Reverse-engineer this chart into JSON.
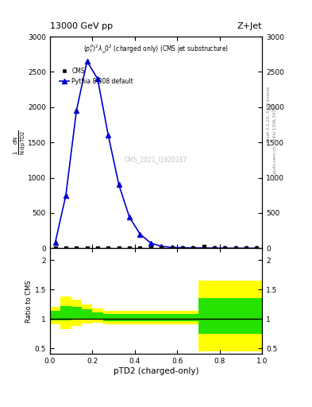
{
  "title_top_left": "13000 GeV pp",
  "title_top_right": "Z+Jet",
  "plot_subtitle": "(p_{T}^{p})^{2}#lambda_{0}^{2} (charged only) (CMS jet substructure)",
  "xlabel": "pTD2 (charged-only)",
  "ylabel_ratio": "Ratio to CMS",
  "watermark": "CMS_2021_I1920187",
  "right_label1": "Rivet 3.1.10, 3.2M events",
  "right_label2": "mcplots.cern.ch [arXiv:1306.3436]",
  "cms_x": [
    0.025,
    0.075,
    0.125,
    0.175,
    0.225,
    0.275,
    0.325,
    0.375,
    0.425,
    0.475,
    0.525,
    0.575,
    0.625,
    0.675,
    0.725,
    0.775,
    0.825,
    0.875,
    0.925,
    0.975
  ],
  "cms_y": [
    5,
    5,
    5,
    5,
    5,
    5,
    5,
    5,
    5,
    5,
    5,
    5,
    5,
    5,
    25,
    5,
    5,
    5,
    5,
    5
  ],
  "pythia_x": [
    0.025,
    0.075,
    0.125,
    0.175,
    0.225,
    0.275,
    0.325,
    0.375,
    0.425,
    0.475,
    0.525,
    0.575,
    0.625,
    0.675,
    0.725,
    0.775,
    0.825,
    0.875,
    0.925,
    0.975
  ],
  "pythia_y": [
    80,
    750,
    1950,
    2650,
    2400,
    1600,
    900,
    440,
    200,
    75,
    28,
    12,
    8,
    6,
    4,
    2.5,
    1.5,
    1,
    0.7,
    0.3
  ],
  "ylim_main": [
    0,
    3000
  ],
  "yticks_main": [
    0,
    500,
    1000,
    1500,
    2000,
    2500,
    3000
  ],
  "xlim": [
    0.0,
    1.0
  ],
  "ratio_ylim": [
    0.4,
    2.2
  ],
  "ratio_yticks": [
    0.5,
    1.0,
    1.5,
    2.0
  ],
  "bin_edges": [
    0.0,
    0.05,
    0.1,
    0.15,
    0.2,
    0.25,
    0.3,
    0.35,
    0.4,
    0.45,
    0.5,
    0.55,
    0.6,
    0.65,
    0.7,
    0.75,
    0.8,
    0.85,
    0.9,
    0.95,
    1.0
  ],
  "ratio_center": [
    1.05,
    1.1,
    1.1,
    1.08,
    1.05,
    1.02,
    1.02,
    1.02,
    1.02,
    1.02,
    1.02,
    1.02,
    1.02,
    1.02,
    1.05,
    1.05,
    1.05,
    1.05,
    1.05,
    1.05
  ],
  "green_half": [
    0.08,
    0.12,
    0.1,
    0.08,
    0.06,
    0.06,
    0.06,
    0.06,
    0.06,
    0.06,
    0.06,
    0.06,
    0.06,
    0.06,
    0.3,
    0.3,
    0.3,
    0.3,
    0.3,
    0.3
  ],
  "yellow_half": [
    0.15,
    0.28,
    0.22,
    0.16,
    0.12,
    0.12,
    0.12,
    0.12,
    0.12,
    0.12,
    0.12,
    0.12,
    0.12,
    0.12,
    0.6,
    0.6,
    0.6,
    0.6,
    0.6,
    0.6
  ],
  "cms_color": "#000000",
  "pythia_color": "#0000cc",
  "green_color": "#00dd00",
  "yellow_color": "#ffff00",
  "gray_color": "#aaaaaa"
}
